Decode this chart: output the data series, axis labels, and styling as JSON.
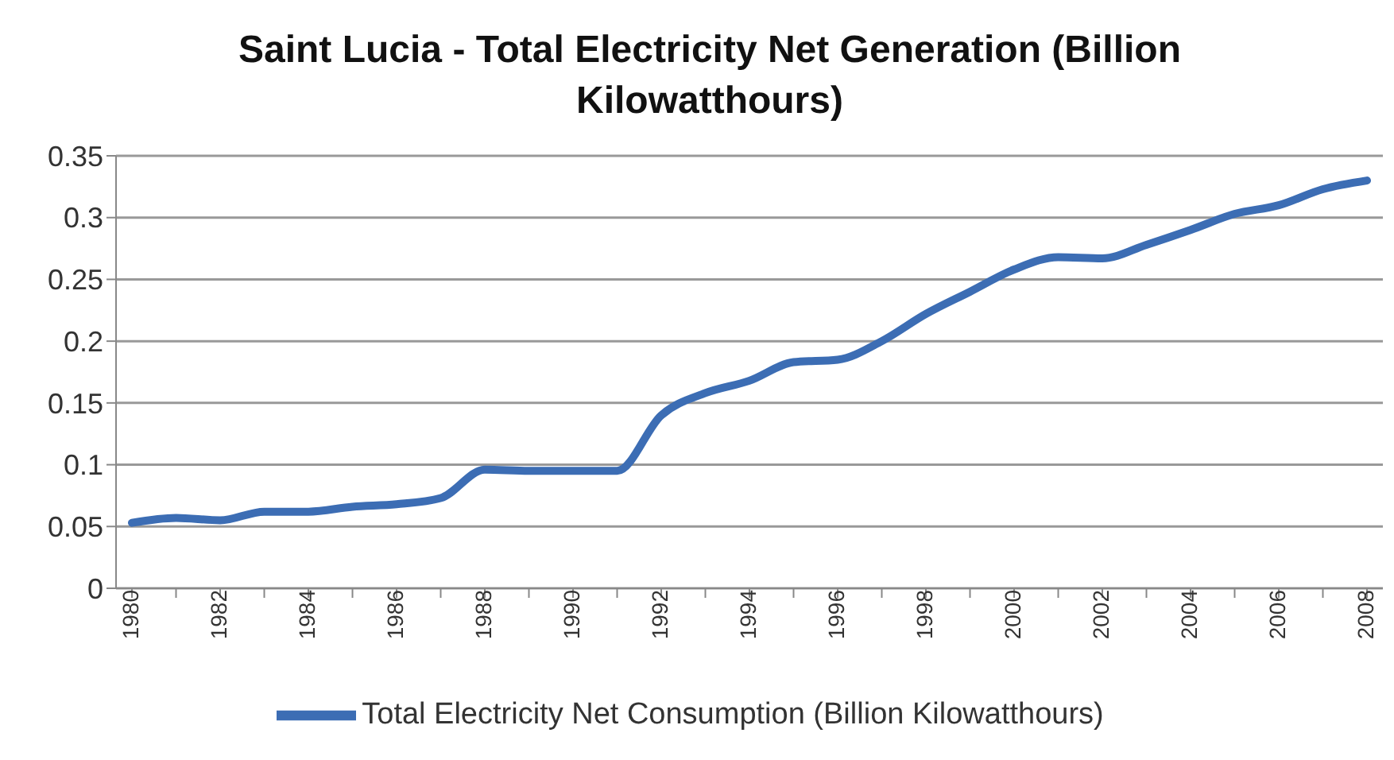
{
  "chart_data": {
    "type": "line",
    "title": "Saint Lucia - Total Electricity Net Generation (Billion Kilowatthours)",
    "categories": [
      "1980",
      null,
      "1982",
      null,
      "1984",
      null,
      "1986",
      null,
      "1988",
      null,
      "1990",
      null,
      "1992",
      null,
      "1994",
      null,
      "1996",
      null,
      "1998",
      null,
      "2000",
      null,
      "2002",
      null,
      "2004",
      null,
      "2006",
      null,
      "2008"
    ],
    "series": [
      {
        "name": "Total Electricity Net Consumption (Billion Kilowatthours)",
        "color": "#3c6db4",
        "values": [
          0.053,
          0.057,
          0.055,
          0.062,
          0.062,
          0.066,
          0.068,
          0.073,
          0.096,
          0.095,
          0.095,
          0.095,
          0.14,
          0.158,
          0.168,
          0.183,
          0.185,
          0.2,
          0.222,
          0.24,
          0.258,
          0.268,
          0.267,
          0.278,
          0.29,
          0.303,
          0.31,
          0.323,
          0.33
        ]
      }
    ],
    "ylim": [
      0,
      0.35
    ],
    "yticks": [
      0,
      0.05,
      0.1,
      0.15,
      0.2,
      0.25,
      0.3,
      0.35
    ],
    "grid": "y",
    "legend": "bottom",
    "marker": "none",
    "line_style": "solid"
  }
}
